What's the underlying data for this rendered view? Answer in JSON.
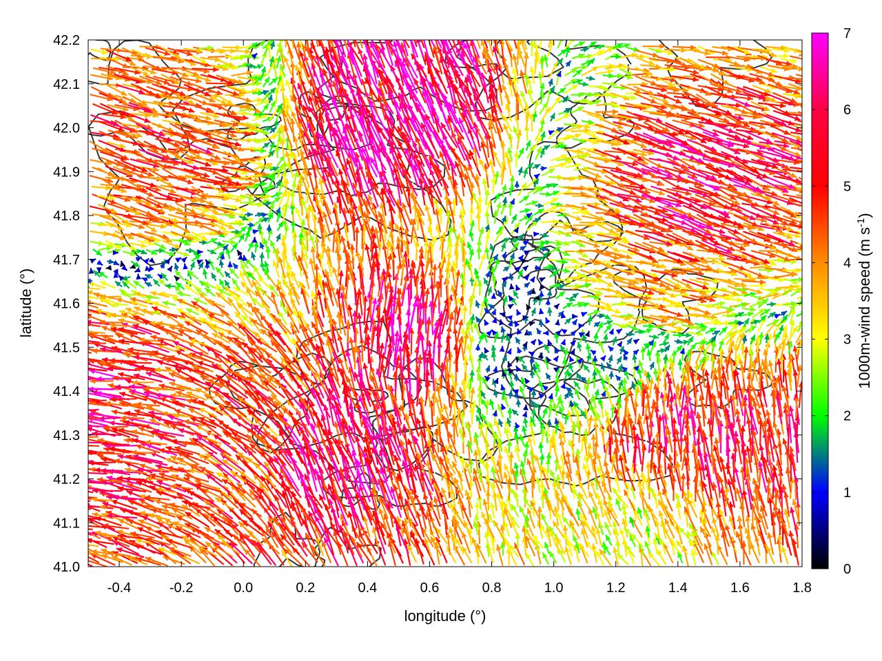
{
  "chart_data": {
    "type": "vector-field",
    "xlabel": "longitude (°)",
    "ylabel": "latitude (°)",
    "xlim": [
      -0.5,
      1.8
    ],
    "ylim": [
      41.0,
      42.2
    ],
    "x_ticks": [
      "-0.4",
      "-0.2",
      "0.0",
      "0.2",
      "0.4",
      "0.6",
      "0.8",
      "1.0",
      "1.2",
      "1.4",
      "1.6",
      "1.8"
    ],
    "x_tick_values": [
      -0.4,
      -0.2,
      0.0,
      0.2,
      0.4,
      0.6,
      0.8,
      1.0,
      1.2,
      1.4,
      1.6,
      1.8
    ],
    "y_ticks": [
      "41.0",
      "41.1",
      "41.2",
      "41.3",
      "41.4",
      "41.5",
      "41.6",
      "41.7",
      "41.8",
      "41.9",
      "42.0",
      "42.1",
      "42.2"
    ],
    "y_tick_values": [
      41.0,
      41.1,
      41.2,
      41.3,
      41.4,
      41.5,
      41.6,
      41.7,
      41.8,
      41.9,
      42.0,
      42.1,
      42.2
    ],
    "grid": true,
    "colorbar": {
      "label": "1000m-wind speed (m s-1)",
      "label_main": "1000m-wind speed (m s",
      "label_sup": "-1",
      "label_end": ")",
      "min": 0,
      "max": 7,
      "ticks": [
        "0",
        "1",
        "2",
        "3",
        "4",
        "5",
        "6",
        "7"
      ],
      "tick_values": [
        0,
        1,
        2,
        3,
        4,
        5,
        6,
        7
      ],
      "colormap": [
        "#000000",
        "#0000ff",
        "#00ff00",
        "#ffff00",
        "#ff8c00",
        "#ff0000",
        "#ff00ff"
      ]
    },
    "contour_color": "#333333",
    "sample_vectors": [
      {
        "lon": -0.45,
        "lat": 41.35,
        "u": -6.0,
        "v": 0.6
      },
      {
        "lon": -0.2,
        "lat": 41.3,
        "u": -5.5,
        "v": 1.2
      },
      {
        "lon": 0.05,
        "lat": 41.3,
        "u": -4.0,
        "v": 3.5
      },
      {
        "lon": 0.3,
        "lat": 41.25,
        "u": -2.0,
        "v": 6.0
      },
      {
        "lon": 0.6,
        "lat": 41.5,
        "u": 0.5,
        "v": 6.5
      },
      {
        "lon": 0.85,
        "lat": 41.5,
        "u": -0.5,
        "v": 0.5
      },
      {
        "lon": 1.1,
        "lat": 41.45,
        "u": -0.3,
        "v": 1.8
      },
      {
        "lon": 1.35,
        "lat": 41.25,
        "u": 0.0,
        "v": 6.0
      },
      {
        "lon": 1.55,
        "lat": 41.25,
        "u": -0.8,
        "v": 5.8
      },
      {
        "lon": 1.3,
        "lat": 41.1,
        "u": -1.5,
        "v": 3.0
      },
      {
        "lon": 1.4,
        "lat": 41.85,
        "u": 5.5,
        "v": -2.0
      },
      {
        "lon": 0.5,
        "lat": 42.0,
        "u": -2.5,
        "v": 6.0
      },
      {
        "lon": -0.3,
        "lat": 41.95,
        "u": 5.0,
        "v": -1.5
      },
      {
        "lon": 1.25,
        "lat": 41.65,
        "u": 4.5,
        "v": -1.0
      }
    ]
  }
}
